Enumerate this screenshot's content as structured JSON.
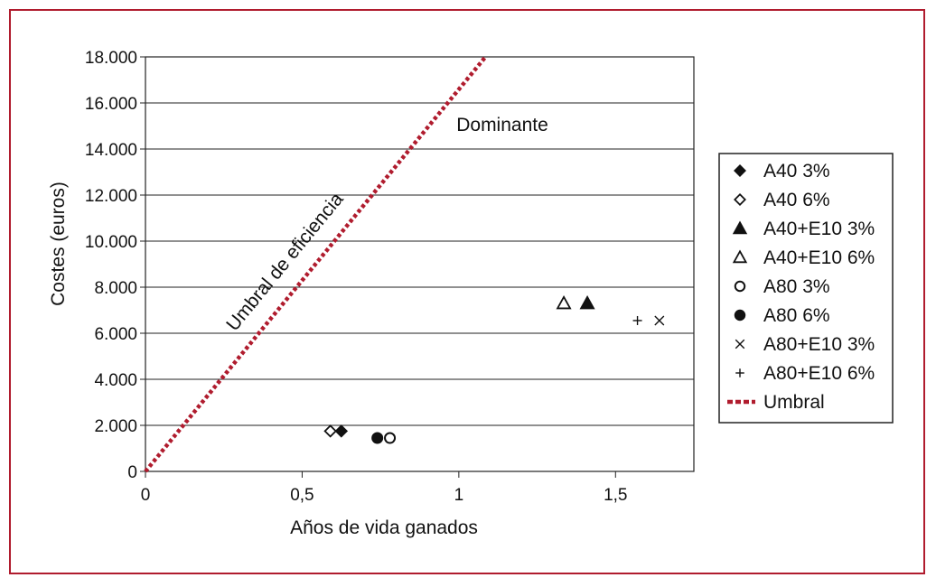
{
  "chart_data": {
    "type": "scatter",
    "xlabel": "Años de vida ganados",
    "ylabel": "Costes (euros)",
    "xlim": [
      0,
      1.75
    ],
    "ylim": [
      0,
      18000
    ],
    "x_ticks": [
      0,
      0.5,
      1,
      1.5
    ],
    "x_tick_labels": [
      "0",
      "0,5",
      "1",
      "1,5"
    ],
    "y_ticks": [
      0,
      2000,
      4000,
      6000,
      8000,
      10000,
      12000,
      14000,
      16000,
      18000
    ],
    "y_tick_labels": [
      "0",
      "2.000",
      "4.000",
      "6.000",
      "8.000",
      "10.000",
      "12.000",
      "14.000",
      "16.000",
      "18.000"
    ],
    "grid": "horizontal",
    "legend_position": "right",
    "series": [
      {
        "name": "A40 3%",
        "marker": "diamond-filled",
        "points": [
          [
            0.625,
            1750
          ]
        ]
      },
      {
        "name": "A40 6%",
        "marker": "diamond-open",
        "points": [
          [
            0.59,
            1750
          ]
        ]
      },
      {
        "name": "A40+E10 3%",
        "marker": "triangle-filled",
        "points": [
          [
            1.41,
            7300
          ]
        ]
      },
      {
        "name": "A40+E10 6%",
        "marker": "triangle-open",
        "points": [
          [
            1.335,
            7300
          ]
        ]
      },
      {
        "name": "A80 3%",
        "marker": "circle-open",
        "points": [
          [
            0.78,
            1450
          ]
        ]
      },
      {
        "name": "A80 6%",
        "marker": "circle-filled",
        "points": [
          [
            0.74,
            1450
          ]
        ]
      },
      {
        "name": "A80+E10 3%",
        "marker": "x",
        "points": [
          [
            1.64,
            6550
          ]
        ]
      },
      {
        "name": "A80+E10 6%",
        "marker": "plus",
        "points": [
          [
            1.57,
            6550
          ]
        ]
      }
    ],
    "threshold": {
      "name": "Umbral",
      "color": "#b01c2e",
      "style": "dashed",
      "points": [
        [
          0,
          0
        ],
        [
          1.085,
          18000
        ]
      ]
    },
    "annotations": [
      {
        "text": "Dominante"
      },
      {
        "text": "Umbral de eficiencia"
      }
    ]
  },
  "colors": {
    "frame": "#b01c2e",
    "threshold": "#b01c2e",
    "markers": "#111111"
  }
}
